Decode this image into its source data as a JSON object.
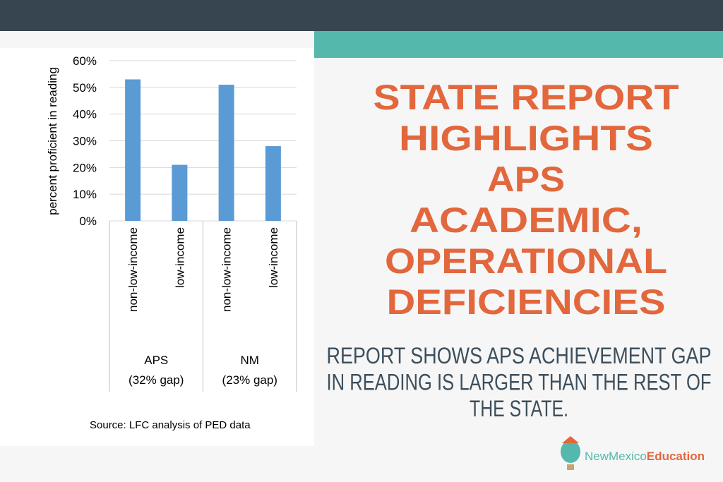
{
  "chart_data": {
    "type": "bar",
    "y_label": "percent proficient in reading",
    "categories": [
      "non-low-income",
      "low-income",
      "non-low-income",
      "low-income"
    ],
    "groups": [
      {
        "label": [
          "APS",
          "(32% gap)"
        ]
      },
      {
        "label": [
          "NM",
          "(23% gap)"
        ]
      }
    ],
    "values": [
      53,
      21,
      51,
      28
    ],
    "color": "#5b9bd5",
    "ylim": [
      0,
      60
    ],
    "yticks": [
      {
        "value": 0,
        "label": "0%"
      },
      {
        "value": 10,
        "label": "10%"
      },
      {
        "value": 20,
        "label": "20%"
      },
      {
        "value": 30,
        "label": "30%"
      },
      {
        "value": 40,
        "label": "40%"
      },
      {
        "value": 50,
        "label": "50%"
      },
      {
        "value": 60,
        "label": "60%"
      }
    ],
    "grid": true,
    "source": "Source: LFC analysis of PED data"
  },
  "headline": [
    "STATE REPORT",
    "HIGHLIGHTS",
    "APS",
    "ACADEMIC,",
    "OPERATIONAL",
    "DEFICIENCIES"
  ],
  "subhead": [
    "REPORT SHOWS APS  ACHIEVEMENT GAP",
    "IN READING IS LARGER THAN THE REST OF",
    "THE STATE."
  ],
  "logo": {
    "part1": "NewMexico",
    "part2": "Education"
  }
}
